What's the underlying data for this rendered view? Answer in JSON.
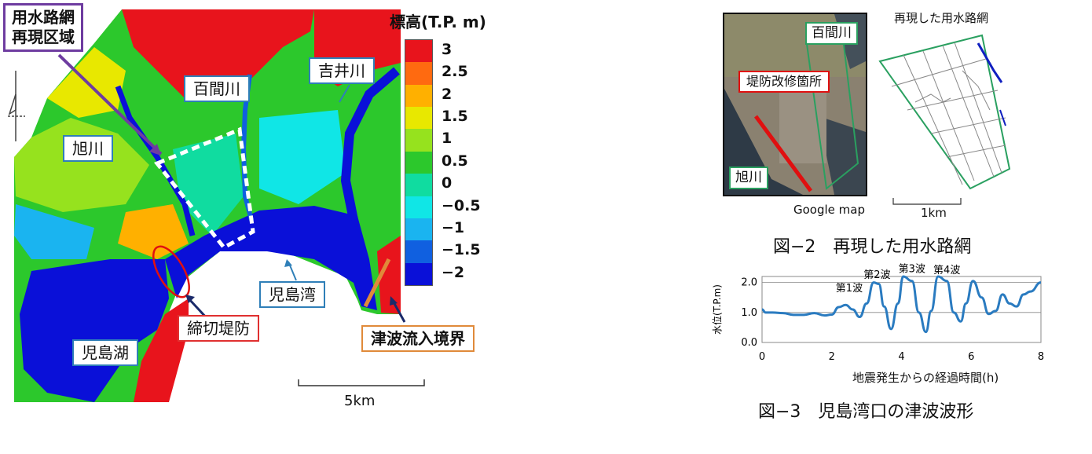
{
  "map": {
    "legend_title": "標高(T.P.  m)",
    "legend_ticks": [
      "3",
      "2.5",
      "2",
      "1.5",
      "1",
      "0.5",
      "0",
      "−0.5",
      "−1",
      "−1.5",
      "−2"
    ],
    "legend_colors": [
      "#e8141c",
      "#ff6a10",
      "#ffb000",
      "#e8e800",
      "#96e21e",
      "#2cc82c",
      "#10dca0",
      "#10e6e6",
      "#1ab4f0",
      "#1060e0",
      "#0a10d8"
    ],
    "labels": {
      "region": "用水路網\n再現区域",
      "hyakken": "百間川",
      "yoshii": "吉井川",
      "asahi": "旭川",
      "kojima_bay": "児島湾",
      "shimekiri": "締切堤防",
      "boundary": "津波流入境界",
      "kojima_lake": "児島湖"
    },
    "scale_label": "5km"
  },
  "fig2": {
    "hyakken": "百間川",
    "repair": "堤防改修箇所",
    "asahi": "旭川",
    "source": "Google map",
    "network_title": "再現した用水路網",
    "scale_label": "1km",
    "caption": "図−2　再現した用水路網"
  },
  "fig3": {
    "caption": "図−3　児島湾口の津波波形",
    "chart_data": {
      "type": "line",
      "xlabel": "地震発生からの経過時間(h)",
      "ylabel": "水位(T.P.m)",
      "xlim": [
        0,
        8
      ],
      "ylim": [
        0,
        2.2
      ],
      "x_ticks": [
        "0",
        "2",
        "4",
        "6",
        "8"
      ],
      "y_ticks": [
        "0.0",
        "1.0",
        "2.0"
      ],
      "grid": true,
      "series_color": "#2a7bc0",
      "x": [
        0,
        0.1,
        0.3,
        0.6,
        0.9,
        1.2,
        1.5,
        1.8,
        2.0,
        2.2,
        2.4,
        2.6,
        2.8,
        3.0,
        3.2,
        3.35,
        3.5,
        3.7,
        3.9,
        4.05,
        4.3,
        4.5,
        4.7,
        4.85,
        5.05,
        5.3,
        5.5,
        5.7,
        5.85,
        6.05,
        6.3,
        6.5,
        6.7,
        6.9,
        7.1,
        7.3,
        7.5,
        7.7,
        8.0
      ],
      "y": [
        1.1,
        1.0,
        1.0,
        0.98,
        0.92,
        0.92,
        0.98,
        0.9,
        0.93,
        1.18,
        1.25,
        1.1,
        0.85,
        1.3,
        2.0,
        1.95,
        1.2,
        0.45,
        1.3,
        2.2,
        2.05,
        1.0,
        0.35,
        1.05,
        2.2,
        2.05,
        1.0,
        0.7,
        1.3,
        2.05,
        1.5,
        0.95,
        1.05,
        1.6,
        1.3,
        1.2,
        1.6,
        1.7,
        2.0
      ],
      "annotations": [
        {
          "text": "第1波",
          "x": 2.5,
          "y": 1.7
        },
        {
          "text": "第2波",
          "x": 3.3,
          "y": 2.15
        },
        {
          "text": "第3波",
          "x": 4.3,
          "y": 2.35
        },
        {
          "text": "第4波",
          "x": 5.3,
          "y": 2.3
        }
      ]
    }
  }
}
